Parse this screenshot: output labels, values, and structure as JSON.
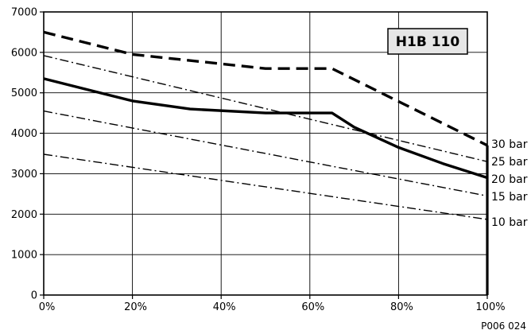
{
  "chart_data": {
    "type": "line",
    "title": "",
    "xlabel": "",
    "ylabel": "",
    "xlim": [
      0,
      100
    ],
    "ylim": [
      0,
      7000
    ],
    "x_ticks": [
      0,
      20,
      40,
      60,
      80,
      100
    ],
    "x_tick_labels": [
      "0%",
      "20%",
      "40%",
      "60%",
      "80%",
      "100%"
    ],
    "y_ticks": [
      0,
      1000,
      2000,
      3000,
      4000,
      5000,
      6000,
      7000
    ],
    "y_tick_labels": [
      "0",
      "1000",
      "2000",
      "3000",
      "4000",
      "5000",
      "6000",
      "7000"
    ],
    "grid": true,
    "model_label": "H1B 110",
    "figure_code": "P006 024",
    "series": [
      {
        "name": "30 bar",
        "style": "dashed-thick",
        "x": [
          0,
          20,
          50,
          65,
          100
        ],
        "y": [
          6500,
          5950,
          5600,
          5600,
          3700
        ]
      },
      {
        "name": "25 bar",
        "style": "dashdot",
        "x": [
          0,
          100
        ],
        "y": [
          5920,
          3300
        ]
      },
      {
        "name": "20 bar",
        "style": "solid-thick",
        "x": [
          0,
          20,
          33,
          50,
          65,
          70,
          80,
          90,
          100
        ],
        "y": [
          5350,
          4800,
          4600,
          4500,
          4500,
          4150,
          3650,
          3250,
          2900
        ]
      },
      {
        "name": "15 bar",
        "style": "dashdot",
        "x": [
          0,
          100
        ],
        "y": [
          4550,
          2450
        ]
      },
      {
        "name": "10 bar",
        "style": "dashdot",
        "x": [
          0,
          100
        ],
        "y": [
          3480,
          1870
        ]
      }
    ],
    "colors": {
      "line": "#000000",
      "grid": "#000000",
      "model_box": "#e6e6e6"
    }
  }
}
